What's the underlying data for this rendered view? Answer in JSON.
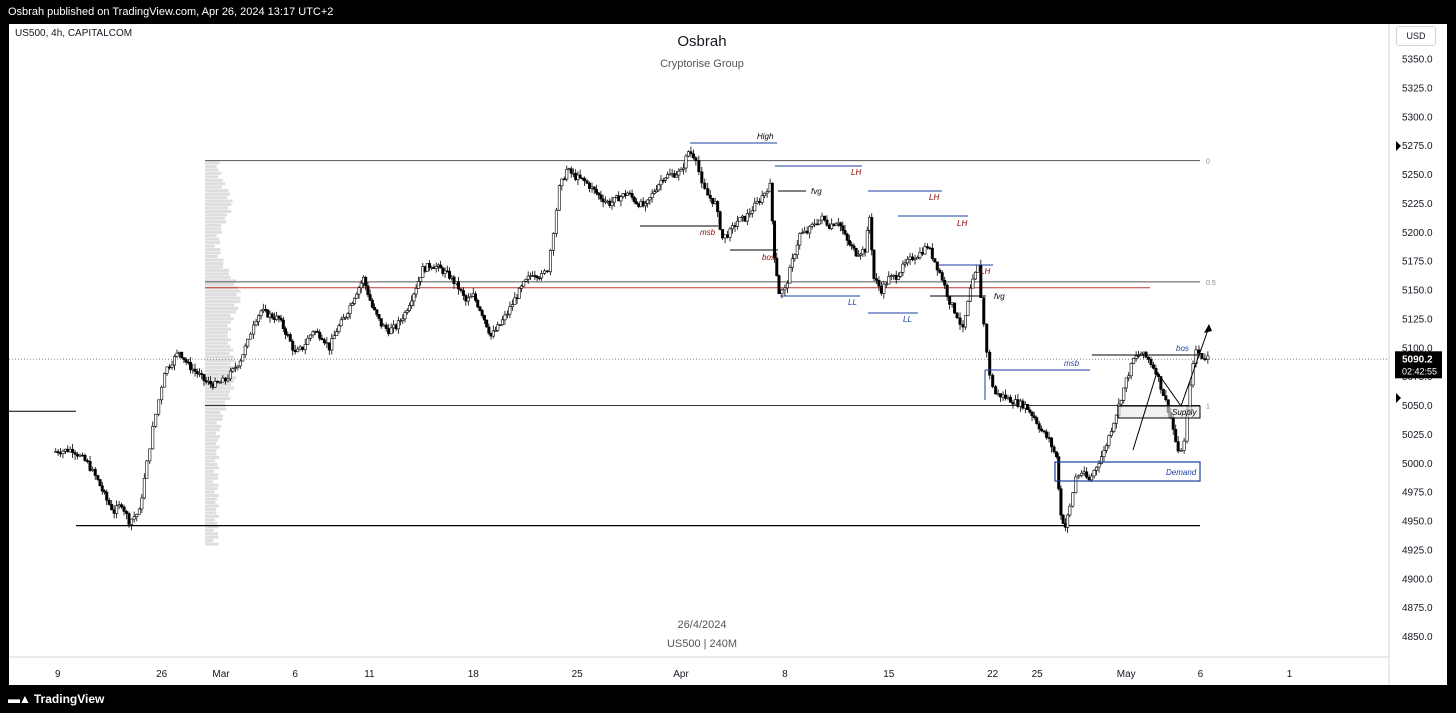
{
  "header": {
    "publish_text": "Osbrah published on TradingView.com, Apr 26, 2024 13:17 UTC+2"
  },
  "footer": {
    "brand": "TradingView"
  },
  "chart_data": {
    "type": "candlestick",
    "symbol": "US500, 4h, CAPITALCOM",
    "title": "Osbrah",
    "subtitle": "Cryptorise Group",
    "footer_date": "26/4/2024",
    "footer_symbol": "US500 | 240M",
    "currency_button": "USD",
    "y_ticks": [
      5350,
      5325,
      5300,
      5275,
      5250,
      5225,
      5200,
      5175,
      5150,
      5125,
      5100,
      5075,
      5050,
      5025,
      5000,
      4975,
      4950,
      4925,
      4900,
      4875,
      4850
    ],
    "y_tick_labels": [
      "5350.0",
      "5325.0",
      "5300.0",
      "5275.0",
      "5250.0",
      "5225.0",
      "5200.0",
      "5175.0",
      "5150.0",
      "5125.0",
      "5100.0",
      "5075.0",
      "5050.0",
      "5025.0",
      "5000.0",
      "4975.0",
      "4950.0",
      "4925.0",
      "4900.0",
      "4875.0",
      "4850.0"
    ],
    "x_ticks": [
      {
        "label": "9",
        "day": -11
      },
      {
        "label": "26",
        "day": -4
      },
      {
        "label": "Mar",
        "day": 0
      },
      {
        "label": "6",
        "day": 5
      },
      {
        "label": "11",
        "day": 10
      },
      {
        "label": "18",
        "day": 17
      },
      {
        "label": "25",
        "day": 24
      },
      {
        "label": "Apr",
        "day": 31
      },
      {
        "label": "8",
        "day": 38
      },
      {
        "label": "15",
        "day": 45
      },
      {
        "label": "22",
        "day": 52
      },
      {
        "label": "25",
        "day": 55
      },
      {
        "label": "May",
        "day": 61
      },
      {
        "label": "6",
        "day": 66
      },
      {
        "label": "1",
        "day": 72
      }
    ],
    "last_price": "5090.2",
    "countdown": "02:42:55",
    "price_path": [
      [
        -11.3,
        5010
      ],
      [
        -10,
        5012
      ],
      [
        -9,
        5000
      ],
      [
        -8.3,
        4985
      ],
      [
        -7.7,
        4968
      ],
      [
        -7.2,
        4958
      ],
      [
        -6.7,
        4965
      ],
      [
        -6.2,
        4950
      ],
      [
        -5.5,
        4958
      ],
      [
        -5,
        5000
      ],
      [
        -4.6,
        5030
      ],
      [
        -4.2,
        5055
      ],
      [
        -3.8,
        5080
      ],
      [
        -3.3,
        5088
      ],
      [
        -2.8,
        5097
      ],
      [
        -2.2,
        5085
      ],
      [
        -1.6,
        5078
      ],
      [
        -1,
        5070
      ],
      [
        -0.4,
        5068
      ],
      [
        0.3,
        5072
      ],
      [
        0.8,
        5080
      ],
      [
        1.3,
        5090
      ],
      [
        1.8,
        5105
      ],
      [
        2.2,
        5122
      ],
      [
        2.7,
        5132
      ],
      [
        3.3,
        5128
      ],
      [
        3.9,
        5125
      ],
      [
        4.5,
        5110
      ],
      [
        5,
        5095
      ],
      [
        5.5,
        5100
      ],
      [
        6.2,
        5115
      ],
      [
        6.8,
        5110
      ],
      [
        7.3,
        5100
      ],
      [
        7.8,
        5115
      ],
      [
        8.4,
        5128
      ],
      [
        9,
        5145
      ],
      [
        9.6,
        5160
      ],
      [
        10.2,
        5135
      ],
      [
        10.8,
        5120
      ],
      [
        11.3,
        5115
      ],
      [
        11.8,
        5118
      ],
      [
        12.4,
        5130
      ],
      [
        13,
        5148
      ],
      [
        13.6,
        5168
      ],
      [
        14.2,
        5172
      ],
      [
        14.8,
        5168
      ],
      [
        15.4,
        5162
      ],
      [
        16,
        5152
      ],
      [
        16.5,
        5140
      ],
      [
        17,
        5145
      ],
      [
        17.6,
        5130
      ],
      [
        18.2,
        5110
      ],
      [
        18.8,
        5120
      ],
      [
        19.3,
        5130
      ],
      [
        19.8,
        5142
      ],
      [
        20.4,
        5155
      ],
      [
        21,
        5165
      ],
      [
        21.6,
        5162
      ],
      [
        22,
        5168
      ],
      [
        22.4,
        5202
      ],
      [
        22.8,
        5238
      ],
      [
        23.3,
        5254
      ],
      [
        23.9,
        5248
      ],
      [
        24.5,
        5244
      ],
      [
        25,
        5238
      ],
      [
        25.6,
        5230
      ],
      [
        26.2,
        5225
      ],
      [
        26.8,
        5230
      ],
      [
        27.4,
        5234
      ],
      [
        28,
        5226
      ],
      [
        28.6,
        5222
      ],
      [
        29.2,
        5236
      ],
      [
        29.8,
        5248
      ],
      [
        30.4,
        5250
      ],
      [
        31,
        5252
      ],
      [
        31.5,
        5270
      ],
      [
        32,
        5265
      ],
      [
        32.4,
        5240
      ],
      [
        32.8,
        5232
      ],
      [
        33.3,
        5225
      ],
      [
        33.8,
        5195
      ],
      [
        34.3,
        5200
      ],
      [
        34.8,
        5210
      ],
      [
        35.3,
        5212
      ],
      [
        35.8,
        5220
      ],
      [
        36.3,
        5228
      ],
      [
        36.8,
        5238
      ],
      [
        37,
        5240
      ],
      [
        37.3,
        5180
      ],
      [
        37.6,
        5148
      ],
      [
        38,
        5150
      ],
      [
        38.5,
        5175
      ],
      [
        39,
        5198
      ],
      [
        39.5,
        5200
      ],
      [
        40,
        5208
      ],
      [
        40.5,
        5212
      ],
      [
        41,
        5206
      ],
      [
        41.6,
        5210
      ],
      [
        42.2,
        5192
      ],
      [
        42.8,
        5182
      ],
      [
        43.4,
        5185
      ],
      [
        43.7,
        5213
      ],
      [
        44,
        5160
      ],
      [
        44.5,
        5150
      ],
      [
        45,
        5160
      ],
      [
        45.5,
        5162
      ],
      [
        46.1,
        5172
      ],
      [
        46.6,
        5178
      ],
      [
        47.1,
        5182
      ],
      [
        47.6,
        5188
      ],
      [
        48.1,
        5175
      ],
      [
        48.6,
        5160
      ],
      [
        49.1,
        5140
      ],
      [
        49.6,
        5128
      ],
      [
        50,
        5115
      ],
      [
        50.5,
        5150
      ],
      [
        51,
        5170
      ],
      [
        51.4,
        5120
      ],
      [
        51.8,
        5075
      ],
      [
        52.2,
        5060
      ],
      [
        52.7,
        5058
      ],
      [
        53.2,
        5055
      ],
      [
        53.7,
        5052
      ],
      [
        54.2,
        5050
      ],
      [
        54.8,
        5040
      ],
      [
        55.3,
        5028
      ],
      [
        55.8,
        5020
      ],
      [
        56.3,
        5005
      ],
      [
        56.6,
        4955
      ],
      [
        56.9,
        4945
      ],
      [
        57.2,
        4962
      ],
      [
        57.6,
        4988
      ],
      [
        58,
        4992
      ],
      [
        58.5,
        4985
      ],
      [
        59,
        4998
      ],
      [
        59.5,
        5010
      ],
      [
        60,
        5030
      ],
      [
        60.5,
        5050
      ],
      [
        61,
        5072
      ],
      [
        61.5,
        5090
      ],
      [
        62,
        5095
      ],
      [
        62.5,
        5090
      ],
      [
        63,
        5080
      ],
      [
        63.5,
        5060
      ],
      [
        64,
        5040
      ],
      [
        64.5,
        5008
      ],
      [
        64.9,
        5018
      ],
      [
        65.3,
        5070
      ],
      [
        65.7,
        5098
      ],
      [
        66.1,
        5092
      ],
      [
        66.5,
        5092
      ]
    ],
    "annotations": [
      "High",
      "LH",
      "LH",
      "LH",
      "LH",
      "fvg",
      "fvg",
      "msb",
      "bos",
      "LL",
      "LL",
      "msb",
      "bos",
      "Supply",
      "Demand"
    ],
    "fib_labels": [
      "0",
      "0.5",
      "1"
    ]
  }
}
